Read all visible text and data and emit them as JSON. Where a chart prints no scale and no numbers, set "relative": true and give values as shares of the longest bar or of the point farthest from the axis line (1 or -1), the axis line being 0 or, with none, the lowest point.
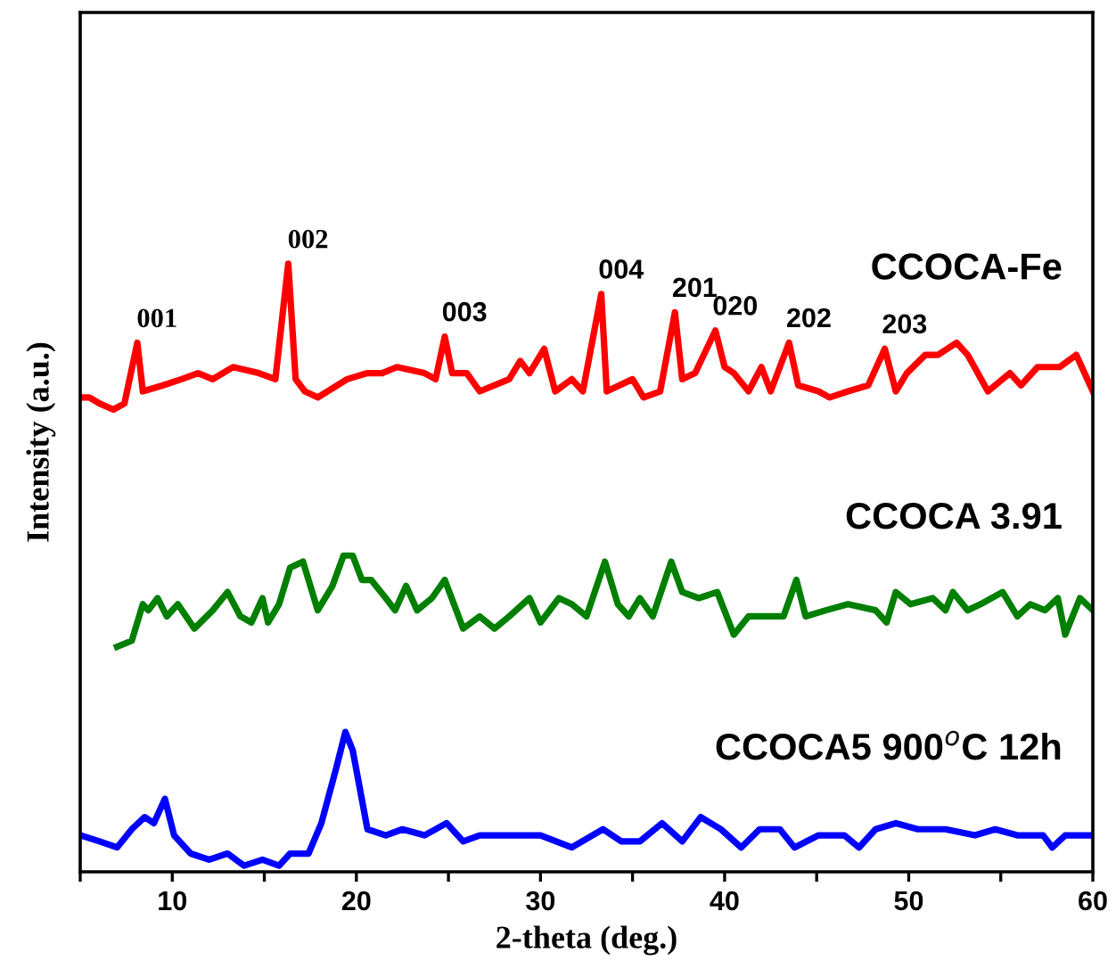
{
  "chart_data": {
    "type": "line",
    "relative": true,
    "xlabel": "2-theta (deg.)",
    "ylabel": "Intensity (a.u.)",
    "xlim": [
      5,
      60
    ],
    "xticks": [
      {
        "value": 5,
        "label": null
      },
      10,
      {
        "value": 15,
        "label": null
      },
      20,
      {
        "value": 25,
        "label": null
      },
      30,
      {
        "value": 35,
        "label": null
      },
      40,
      {
        "value": 45,
        "label": null
      },
      50,
      {
        "value": 55,
        "label": null
      },
      60
    ],
    "grid": false,
    "legend": false,
    "marker": "none",
    "line_style": "solid",
    "series": [
      {
        "name": "CCOCA-Fe",
        "color": "#ff0000",
        "x": [
          5.0,
          5.5,
          6.05,
          6.8,
          7.4,
          8.1,
          8.4,
          9.5,
          10.5,
          11.4,
          12.2,
          13.3,
          14.7,
          15.6,
          16.3,
          16.7,
          17.2,
          17.9,
          19.5,
          20.6,
          21.4,
          22.2,
          23.7,
          24.3,
          24.8,
          25.2,
          26.0,
          26.7,
          28.3,
          28.9,
          29.4,
          30.2,
          30.8,
          31.7,
          32.3,
          33.3,
          33.6,
          35.0,
          35.6,
          36.5,
          37.3,
          37.7,
          38.4,
          39.5,
          40.0,
          40.5,
          41.3,
          42.0,
          42.5,
          43.5,
          44.0,
          45.1,
          45.7,
          46.7,
          47.8,
          48.7,
          49.3,
          49.9,
          50.9,
          51.6,
          52.6,
          53.2,
          54.3,
          55.5,
          56.1,
          57.0,
          58.2,
          59.1,
          60.0
        ],
        "values": [
          0.78,
          0.78,
          0.77,
          0.76,
          0.77,
          0.87,
          0.79,
          0.8,
          0.81,
          0.82,
          0.81,
          0.83,
          0.82,
          0.81,
          1.0,
          0.81,
          0.79,
          0.78,
          0.81,
          0.82,
          0.82,
          0.83,
          0.82,
          0.81,
          0.88,
          0.82,
          0.82,
          0.79,
          0.81,
          0.84,
          0.82,
          0.86,
          0.79,
          0.81,
          0.79,
          0.95,
          0.79,
          0.81,
          0.78,
          0.79,
          0.92,
          0.81,
          0.82,
          0.89,
          0.83,
          0.82,
          0.79,
          0.83,
          0.79,
          0.87,
          0.8,
          0.79,
          0.78,
          0.79,
          0.8,
          0.86,
          0.79,
          0.82,
          0.85,
          0.85,
          0.87,
          0.85,
          0.79,
          0.82,
          0.8,
          0.83,
          0.83,
          0.85,
          0.79
        ]
      },
      {
        "name": "CCOCA 3.91",
        "color": "#007f00",
        "x": [
          7.0,
          7.8,
          8.4,
          8.7,
          9.2,
          9.7,
          10.3,
          11.2,
          12.2,
          13.0,
          13.7,
          14.3,
          14.9,
          15.2,
          15.8,
          16.4,
          17.1,
          17.9,
          18.7,
          19.3,
          19.8,
          20.3,
          20.8,
          21.6,
          22.1,
          22.7,
          23.3,
          24.1,
          24.8,
          25.8,
          26.7,
          27.5,
          28.3,
          29.4,
          30.0,
          31.0,
          31.7,
          32.5,
          33.5,
          34.2,
          34.8,
          35.4,
          36.1,
          37.1,
          37.7,
          38.6,
          39.6,
          40.5,
          41.3,
          42.5,
          43.2,
          43.9,
          44.4,
          45.5,
          46.7,
          48.2,
          48.8,
          49.3,
          50.1,
          51.3,
          52.0,
          52.4,
          53.2,
          53.9,
          55.1,
          55.9,
          56.6,
          57.4,
          58.1,
          58.5,
          59.3,
          60.0
        ],
        "values": [
          0.37,
          0.38,
          0.44,
          0.43,
          0.45,
          0.42,
          0.44,
          0.4,
          0.43,
          0.46,
          0.42,
          0.41,
          0.45,
          0.41,
          0.44,
          0.5,
          0.51,
          0.43,
          0.47,
          0.52,
          0.52,
          0.48,
          0.48,
          0.45,
          0.43,
          0.47,
          0.43,
          0.45,
          0.48,
          0.4,
          0.42,
          0.4,
          0.42,
          0.45,
          0.41,
          0.45,
          0.44,
          0.42,
          0.51,
          0.44,
          0.42,
          0.45,
          0.42,
          0.51,
          0.46,
          0.45,
          0.46,
          0.39,
          0.42,
          0.42,
          0.42,
          0.48,
          0.42,
          0.43,
          0.44,
          0.43,
          0.41,
          0.46,
          0.44,
          0.45,
          0.43,
          0.46,
          0.43,
          0.44,
          0.46,
          0.42,
          0.44,
          0.43,
          0.45,
          0.39,
          0.45,
          0.43
        ]
      },
      {
        "name": "CCOCA5 900$^{o}$C 12h",
        "color": "#0000ff",
        "x": [
          5.0,
          6.05,
          7.0,
          7.8,
          8.5,
          9.0,
          9.6,
          10.1,
          11.0,
          12.0,
          13.0,
          13.9,
          14.9,
          15.8,
          16.4,
          17.4,
          18.1,
          18.9,
          19.4,
          19.8,
          20.6,
          21.6,
          22.5,
          23.7,
          24.9,
          25.8,
          26.7,
          27.9,
          29.0,
          30.0,
          31.7,
          33.4,
          34.4,
          35.4,
          36.6,
          37.7,
          38.7,
          39.8,
          40.9,
          41.9,
          43.0,
          43.8,
          45.1,
          46.5,
          47.3,
          48.2,
          49.3,
          50.5,
          52.0,
          53.6,
          54.7,
          55.9,
          57.3,
          57.8,
          58.5,
          60.0
        ],
        "values": [
          0.06,
          0.05,
          0.04,
          0.07,
          0.09,
          0.08,
          0.12,
          0.06,
          0.03,
          0.02,
          0.03,
          0.01,
          0.02,
          0.01,
          0.03,
          0.03,
          0.08,
          0.17,
          0.23,
          0.2,
          0.07,
          0.06,
          0.07,
          0.06,
          0.08,
          0.05,
          0.06,
          0.06,
          0.06,
          0.06,
          0.04,
          0.07,
          0.05,
          0.05,
          0.08,
          0.05,
          0.09,
          0.07,
          0.04,
          0.07,
          0.07,
          0.04,
          0.06,
          0.06,
          0.04,
          0.07,
          0.08,
          0.07,
          0.07,
          0.06,
          0.07,
          0.06,
          0.06,
          0.04,
          0.06,
          0.06
        ]
      }
    ],
    "annotations": [
      {
        "text": "001",
        "x": 8.1,
        "y": 0.87
      },
      {
        "text": "002",
        "x": 16.3,
        "y": 1.0
      },
      {
        "text": "003",
        "x": 24.8,
        "y": 0.88
      },
      {
        "text": "004",
        "x": 33.3,
        "y": 0.95
      },
      {
        "text": "201",
        "x": 37.3,
        "y": 0.92
      },
      {
        "text": "020",
        "x": 39.5,
        "y": 0.89
      },
      {
        "text": "202",
        "x": 43.5,
        "y": 0.87
      },
      {
        "text": "203",
        "x": 48.7,
        "y": 0.86
      }
    ]
  }
}
